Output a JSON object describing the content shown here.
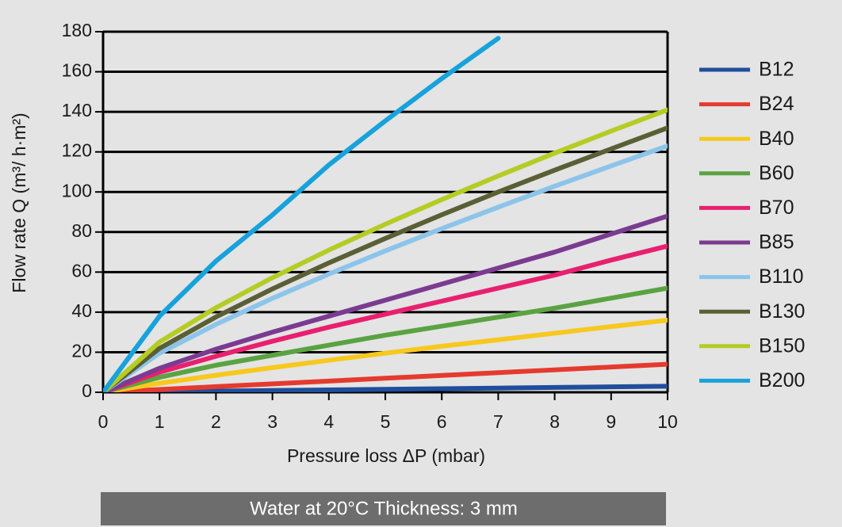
{
  "chart_data": {
    "type": "line",
    "x_label": "Pressure loss ΔP (mbar)",
    "y_label": "Flow rate Q (m³/ h·m²)",
    "annotation": "Water at 20°C   Thickness: 3 mm",
    "x": [
      0,
      1,
      2,
      3,
      4,
      5,
      6,
      7,
      8,
      9,
      10
    ],
    "xlim": [
      0,
      10
    ],
    "xticks": [
      0,
      1,
      2,
      3,
      4,
      5,
      6,
      7,
      8,
      9,
      10
    ],
    "ylim": [
      0,
      180
    ],
    "yticks": [
      0,
      20,
      40,
      60,
      80,
      100,
      120,
      140,
      160,
      180
    ],
    "grid": true,
    "legend": "right",
    "series": [
      {
        "name": "B12",
        "color": "#1f4e9c",
        "values": [
          0,
          0.3,
          0.6,
          0.9,
          1.2,
          1.5,
          1.8,
          2.1,
          2.4,
          2.7,
          3
        ]
      },
      {
        "name": "B24",
        "color": "#e53a2f",
        "values": [
          0,
          1.4,
          2.8,
          4.2,
          5.6,
          7,
          8.4,
          9.8,
          11.2,
          12.6,
          14
        ]
      },
      {
        "name": "B40",
        "color": "#f7c81e",
        "values": [
          0,
          4.5,
          8.5,
          12.3,
          16,
          19.5,
          23,
          26.2,
          29.5,
          32.8,
          36
        ]
      },
      {
        "name": "B60",
        "color": "#5aa342",
        "values": [
          0,
          7.5,
          13.5,
          18.5,
          23.5,
          28.5,
          33,
          37.5,
          42,
          47,
          52
        ]
      },
      {
        "name": "B70",
        "color": "#e8206f",
        "values": [
          0,
          10,
          18,
          25.5,
          32.5,
          39,
          45.5,
          52,
          58.5,
          66,
          73
        ]
      },
      {
        "name": "B85",
        "color": "#7b3b91",
        "values": [
          0,
          12,
          21.5,
          30,
          38,
          46,
          54,
          62,
          70,
          79,
          88
        ]
      },
      {
        "name": "B110",
        "color": "#8cc4ea",
        "values": [
          0,
          19.5,
          33.9,
          46.9,
          59,
          70.6,
          81.7,
          92.4,
          102.9,
          113,
          123
        ]
      },
      {
        "name": "B130",
        "color": "#5b5f35",
        "values": [
          0,
          21.9,
          37.6,
          51.6,
          64.6,
          76.8,
          88.6,
          100,
          110.9,
          121.5,
          132
        ]
      },
      {
        "name": "B150",
        "color": "#b5cc24",
        "values": [
          0,
          25.1,
          42.2,
          57.2,
          71,
          83.9,
          96.2,
          108,
          119.4,
          130.4,
          141
        ]
      },
      {
        "name": "B200",
        "color": "#17a2dc",
        "values": [
          0,
          38,
          65.5,
          88.5,
          113.5,
          135.5,
          156.6,
          176.7,
          null,
          null,
          null
        ]
      }
    ]
  }
}
